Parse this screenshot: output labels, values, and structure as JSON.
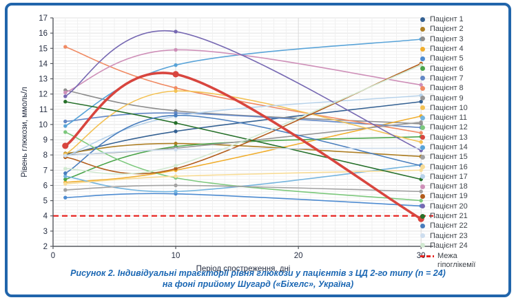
{
  "frame": {
    "border_color": "#2165ab",
    "background": "#ffffff"
  },
  "chart_data": {
    "type": "line",
    "x": [
      1,
      10,
      30
    ],
    "x_ticks": [
      0,
      10,
      20,
      30
    ],
    "xlabel": "Період спостреження, дні",
    "ylabel": "Рівень глюкози, ммоль/л",
    "xlim": [
      0,
      31
    ],
    "ylim": [
      2,
      17
    ],
    "y_tick_step": 1,
    "grid": {
      "enabled": true,
      "h_minor_step": 0.2,
      "v_minor_step": 1,
      "minor_color": "#f0f0f0",
      "major_color": "#e0e0e0"
    },
    "legend_position": "right",
    "marker": "circle",
    "series": [
      {
        "name": "Пацієнт 1",
        "color": "#336092",
        "values": [
          8.0,
          9.55,
          11.5
        ]
      },
      {
        "name": "Пацієнт 2",
        "color": "#ad7e23",
        "values": [
          8.1,
          8.75,
          7.9
        ]
      },
      {
        "name": "Пацієнт 3",
        "color": "#8d8d8d",
        "values": [
          12.25,
          10.9,
          10.05
        ]
      },
      {
        "name": "Пацієнт 4",
        "color": "#f0ae2e",
        "values": [
          6.2,
          7.0,
          10.55
        ]
      },
      {
        "name": "Пацієнт 5",
        "color": "#4d8bd1",
        "values": [
          5.2,
          5.45,
          4.65
        ]
      },
      {
        "name": "Пацієнт 6",
        "color": "#4aa44a",
        "values": [
          6.4,
          8.55,
          9.2
        ]
      },
      {
        "name": "Пацієнт 7",
        "color": "#6287c5",
        "values": [
          10.2,
          10.75,
          9.8
        ]
      },
      {
        "name": "Пацієнт 8",
        "color": "#f08a63",
        "values": [
          15.1,
          12.4,
          9.45
        ]
      },
      {
        "name": "Пацієнт 9",
        "color": "#969696",
        "values": [
          8.0,
          8.45,
          10.15
        ]
      },
      {
        "name": "Пацієнт 10",
        "color": "#f3c153",
        "values": [
          8.05,
          12.2,
          8.85
        ]
      },
      {
        "name": "Пацієнт 11",
        "color": "#74b4de",
        "values": [
          6.6,
          5.6,
          7.35
        ]
      },
      {
        "name": "Пацієнт 12",
        "color": "#7cc87c",
        "values": [
          9.5,
          6.5,
          5.0
        ]
      },
      {
        "name": "Пацієнт 13",
        "color": "#d8453e",
        "values": [
          8.6,
          13.3,
          3.8
        ],
        "emphasis": true
      },
      {
        "name": "Пацієнт 14",
        "color": "#58a3d8",
        "values": [
          9.9,
          13.9,
          15.6
        ]
      },
      {
        "name": "Пацієнт 15",
        "color": "#a2a2a2",
        "values": [
          5.7,
          6.0,
          5.6
        ]
      },
      {
        "name": "Пацієнт 16",
        "color": "#f8dc96",
        "values": [
          6.1,
          6.6,
          7.0
        ]
      },
      {
        "name": "Пацієнт 17",
        "color": "#b7d2ea",
        "values": [
          7.9,
          10.55,
          11.9
        ]
      },
      {
        "name": "Пацієнт 18",
        "color": "#ce8fb8",
        "values": [
          12.1,
          14.9,
          12.6
        ]
      },
      {
        "name": "Пацієнт 19",
        "color": "#b25c1b",
        "values": [
          7.85,
          7.1,
          14.0
        ]
      },
      {
        "name": "Пацієнт 20",
        "color": "#7668b2",
        "values": [
          11.85,
          16.1,
          8.3
        ]
      },
      {
        "name": "Пацієнт 21",
        "color": "#26702a",
        "values": [
          11.5,
          10.1,
          6.4
        ]
      },
      {
        "name": "Пацієнт 22",
        "color": "#487dbd",
        "values": [
          6.8,
          10.6,
          7.3
        ]
      },
      {
        "name": "Пацієнт 23",
        "color": "#cdddee",
        "values": [
          7.95,
          8.35,
          8.45
        ]
      },
      {
        "name": "Пацієнт 24",
        "color": "#d2e9d2",
        "values": [
          7.1,
          7.3,
          13.9
        ]
      }
    ],
    "threshold": {
      "label": "Межа гіпоглікемії",
      "value": 4,
      "color": "#e62320",
      "style": "dashed"
    }
  },
  "caption": {
    "line1": "Рисунок 2. Індивідуальні траєкторії рівня глюкози у пацієнтів з ЦД 2-го типу (n = 24)",
    "line2": "на фоні прийому Шугард («Біхелс», Україна)"
  },
  "colors": {
    "axis_text": "#242c40",
    "axis_line": "#55585e",
    "legend_text": "#3c4147",
    "caption_text": "#1b67b3",
    "frame_border": "#2165ab"
  }
}
